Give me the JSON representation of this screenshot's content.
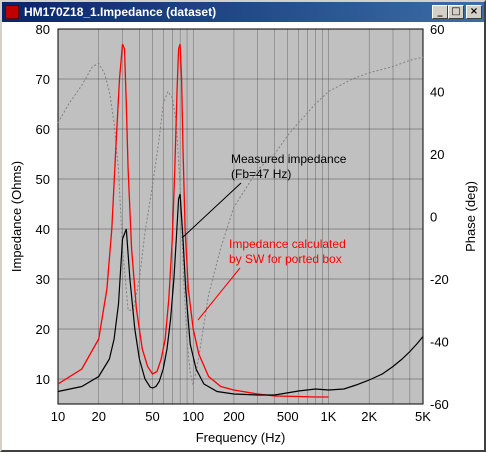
{
  "window": {
    "title": "HM170Z18_1.Impedance (dataset)",
    "minimize_glyph": "_",
    "maximize_glyph": "□",
    "close_glyph": "×"
  },
  "colors": {
    "plot_bg": "#c0c0c0",
    "measured": "#000000",
    "calculated": "#ff0000",
    "phase": "#808080",
    "grid": "#000000"
  },
  "chart_data": {
    "type": "line",
    "x_scale": "log",
    "xlim": [
      10,
      5000
    ],
    "ylim": [
      5,
      80
    ],
    "y2lim": [
      -60,
      60
    ],
    "xlabel": "Frequency (Hz)",
    "ylabel": "Impedance (Ohms)",
    "y2label": "Phase (deg)",
    "x_ticks": [
      10,
      20,
      50,
      100,
      200,
      500,
      1000,
      2000,
      5000
    ],
    "x_tick_labels": [
      "10",
      "20",
      "50",
      "100",
      "200",
      "500",
      "1K",
      "2K",
      "5K"
    ],
    "y_ticks": [
      10,
      20,
      30,
      40,
      50,
      60,
      70,
      80
    ],
    "y2_ticks": [
      -60,
      -40,
      -20,
      0,
      20,
      40,
      60
    ],
    "grid": true,
    "series": [
      {
        "name": "Measured impedance",
        "axis": "left",
        "x": [
          10,
          15,
          20,
          24,
          26,
          28,
          30,
          32,
          34,
          37,
          40,
          44,
          48,
          50,
          53,
          56,
          60,
          64,
          68,
          72,
          75,
          78,
          80,
          84,
          88,
          95,
          105,
          120,
          150,
          200,
          300,
          400,
          600,
          800,
          1000,
          1300,
          1600,
          2000,
          2500,
          3000,
          3500,
          4000,
          4500,
          5000
        ],
        "y": [
          7.5,
          8.5,
          10.5,
          14,
          18,
          25,
          38,
          40,
          30,
          20,
          14,
          10,
          8.4,
          8.2,
          8.5,
          9.5,
          12,
          16,
          22,
          30,
          38,
          46,
          47,
          38,
          28,
          17,
          12,
          9,
          7.5,
          7,
          6.8,
          6.8,
          7.6,
          8,
          7.8,
          8,
          8.8,
          9.8,
          11,
          12.5,
          14,
          15.5,
          17,
          18.5
        ]
      },
      {
        "name": "Impedance calculated by SW for ported box",
        "axis": "left",
        "x": [
          10,
          15,
          20,
          23,
          25,
          27,
          28.5,
          30,
          31,
          32,
          33,
          35,
          38,
          42,
          46,
          50,
          54,
          58,
          62,
          66,
          70,
          73,
          76,
          78,
          80,
          82,
          84,
          87,
          92,
          100,
          110,
          130,
          160,
          200,
          300,
          400,
          600,
          800,
          1000
        ],
        "y": [
          9,
          12,
          18,
          28,
          40,
          58,
          70,
          77,
          76,
          65,
          52,
          36,
          24,
          16,
          12.5,
          11,
          11.5,
          14,
          18,
          26,
          38,
          52,
          68,
          76,
          77,
          70,
          56,
          40,
          28,
          20,
          15,
          10.5,
          8.5,
          7.8,
          7,
          6.6,
          6.5,
          6.4,
          6.4
        ]
      },
      {
        "name": "Phase",
        "axis": "right",
        "x": [
          10,
          12,
          15,
          18,
          20,
          22,
          24,
          26,
          28,
          30,
          33,
          36,
          40,
          44,
          50,
          56,
          60,
          65,
          70,
          75,
          80,
          85,
          90,
          95,
          100,
          110,
          130,
          160,
          200,
          300,
          400,
          500,
          600,
          800,
          1000,
          1500,
          2000,
          3000,
          4000,
          5000
        ],
        "y": [
          30,
          36,
          42,
          48,
          49,
          46,
          40,
          30,
          15,
          -10,
          -30,
          -30,
          -20,
          -5,
          10,
          25,
          36,
          40,
          38,
          30,
          10,
          -20,
          -40,
          -50,
          -54,
          -45,
          -25,
          -10,
          3,
          15,
          20,
          26,
          30,
          36,
          40,
          44,
          46,
          48,
          50,
          51
        ]
      }
    ],
    "annotations": [
      {
        "text": "Measured impedance",
        "color": "#000000"
      },
      {
        "text": "(Fb=47 Hz)",
        "color": "#000000"
      },
      {
        "text": "Impedance calculated",
        "color": "#ff0000"
      },
      {
        "text": "by SW for ported box",
        "color": "#ff0000"
      }
    ]
  }
}
